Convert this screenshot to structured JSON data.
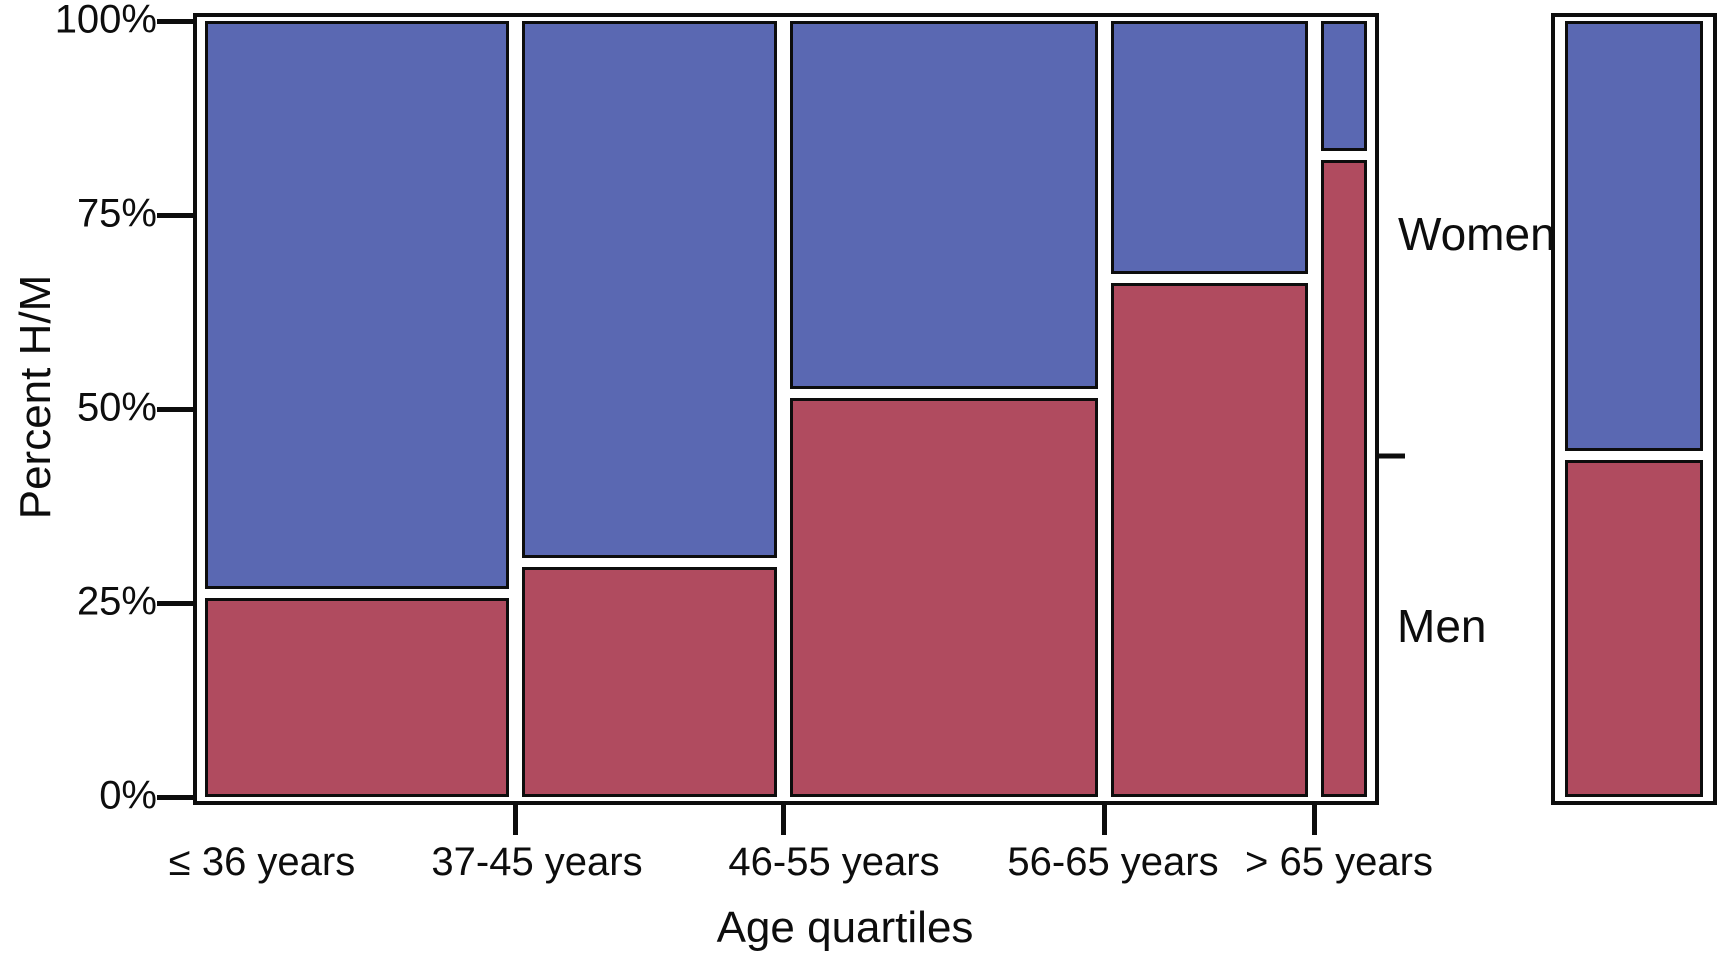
{
  "chart_data": {
    "type": "mosaic",
    "title": "",
    "xlabel": "Age quartiles",
    "ylabel": "Percent H/M",
    "x_categories": [
      "≤ 36 years",
      "37-45 years",
      "46-55 years",
      "56-65 years",
      "> 65 years"
    ],
    "column_width_pct": [
      27.4,
      23.0,
      27.7,
      17.8,
      4.1
    ],
    "y_axis": {
      "range": [
        0,
        100
      ],
      "ticks": [
        0,
        25,
        50,
        75,
        100
      ],
      "tick_labels": [
        "0%",
        "25%",
        "50%",
        "75%",
        "100%"
      ],
      "grid": false
    },
    "series": [
      {
        "name": "Women",
        "position": "top",
        "color": "#5a68b2",
        "values_pct": [
          74,
          70,
          48,
          33,
          17
        ]
      },
      {
        "name": "Men",
        "position": "bottom",
        "color": "#b04b5f",
        "values_pct": [
          26,
          30,
          52,
          67,
          83
        ]
      }
    ],
    "overall_bar": {
      "women_pct": 56,
      "men_pct": 44
    },
    "legend": {
      "women_label": "Women",
      "men_label": "Men"
    },
    "colors": {
      "women": "#5a68b2",
      "men": "#b04b5f",
      "frame": "#0d0d0d",
      "background": "#ffffff"
    }
  }
}
